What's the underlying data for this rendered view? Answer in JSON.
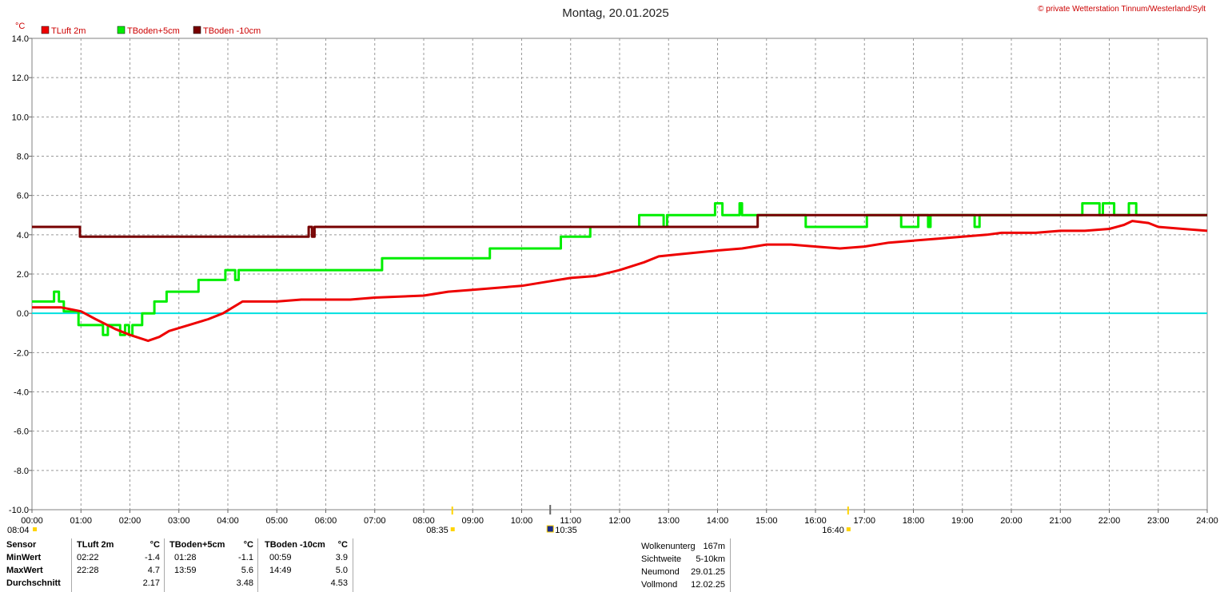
{
  "chart_data": {
    "type": "line",
    "title": "Montag, 20.01.2025",
    "copyright": "© private Wetterstation Tinnum/Westerland/Sylt",
    "ylabel": "°C",
    "ylim": [
      -10,
      14
    ],
    "yticks": [
      "14.0",
      "12.0",
      "10.0",
      "8.0",
      "6.0",
      "4.0",
      "2.0",
      "0.0",
      "-2.0",
      "-4.0",
      "-6.0",
      "-8.0",
      "-10.0"
    ],
    "xlim": [
      0,
      24
    ],
    "xticks": [
      "00:00",
      "01:00",
      "02:00",
      "03:00",
      "04:00",
      "05:00",
      "06:00",
      "07:00",
      "08:00",
      "09:00",
      "10:00",
      "11:00",
      "12:00",
      "13:00",
      "14:00",
      "15:00",
      "16:00",
      "17:00",
      "18:00",
      "19:00",
      "20:00",
      "21:00",
      "22:00",
      "23:00",
      "24:00"
    ],
    "grid": true,
    "legend_position": "top-left",
    "zero_line_color": "#00e0e0",
    "series": [
      {
        "name": "TLuft 2m",
        "color": "#ee0000",
        "points": [
          [
            0,
            0.3
          ],
          [
            0.6,
            0.3
          ],
          [
            1.0,
            0.1
          ],
          [
            1.3,
            -0.3
          ],
          [
            1.7,
            -0.8
          ],
          [
            2.0,
            -1.1
          ],
          [
            2.37,
            -1.4
          ],
          [
            2.6,
            -1.2
          ],
          [
            2.8,
            -0.9
          ],
          [
            3.2,
            -0.6
          ],
          [
            3.6,
            -0.3
          ],
          [
            3.9,
            0.0
          ],
          [
            4.1,
            0.3
          ],
          [
            4.3,
            0.6
          ],
          [
            5.0,
            0.6
          ],
          [
            5.5,
            0.7
          ],
          [
            6.0,
            0.7
          ],
          [
            6.5,
            0.7
          ],
          [
            7.0,
            0.8
          ],
          [
            8.0,
            0.9
          ],
          [
            8.5,
            1.1
          ],
          [
            9.0,
            1.2
          ],
          [
            9.5,
            1.3
          ],
          [
            10.0,
            1.4
          ],
          [
            10.5,
            1.6
          ],
          [
            11.0,
            1.8
          ],
          [
            11.5,
            1.9
          ],
          [
            12.0,
            2.2
          ],
          [
            12.5,
            2.6
          ],
          [
            12.8,
            2.9
          ],
          [
            13.2,
            3.0
          ],
          [
            14.0,
            3.2
          ],
          [
            14.5,
            3.3
          ],
          [
            15.0,
            3.5
          ],
          [
            15.5,
            3.5
          ],
          [
            16.0,
            3.4
          ],
          [
            16.5,
            3.3
          ],
          [
            17.0,
            3.4
          ],
          [
            17.5,
            3.6
          ],
          [
            18.0,
            3.7
          ],
          [
            18.5,
            3.8
          ],
          [
            19.0,
            3.9
          ],
          [
            19.5,
            4.0
          ],
          [
            19.8,
            4.1
          ],
          [
            20.5,
            4.1
          ],
          [
            21.0,
            4.2
          ],
          [
            21.5,
            4.2
          ],
          [
            22.0,
            4.3
          ],
          [
            22.3,
            4.5
          ],
          [
            22.47,
            4.7
          ],
          [
            22.8,
            4.6
          ],
          [
            23.0,
            4.4
          ],
          [
            23.5,
            4.3
          ],
          [
            24.0,
            4.2
          ]
        ]
      },
      {
        "name": "TBoden+5cm",
        "color": "#00ee00",
        "points": [
          [
            0,
            0.6
          ],
          [
            0.45,
            0.6
          ],
          [
            0.45,
            1.1
          ],
          [
            0.55,
            1.1
          ],
          [
            0.55,
            0.6
          ],
          [
            0.65,
            0.6
          ],
          [
            0.65,
            0.1
          ],
          [
            0.95,
            0.1
          ],
          [
            0.95,
            -0.6
          ],
          [
            1.45,
            -0.6
          ],
          [
            1.45,
            -1.1
          ],
          [
            1.55,
            -1.1
          ],
          [
            1.55,
            -0.6
          ],
          [
            1.8,
            -0.6
          ],
          [
            1.8,
            -1.1
          ],
          [
            1.9,
            -1.1
          ],
          [
            1.9,
            -0.6
          ],
          [
            1.98,
            -0.6
          ],
          [
            1.98,
            -1.1
          ],
          [
            2.05,
            -1.1
          ],
          [
            2.05,
            -0.6
          ],
          [
            2.25,
            -0.6
          ],
          [
            2.25,
            0.0
          ],
          [
            2.5,
            0.0
          ],
          [
            2.5,
            0.6
          ],
          [
            2.75,
            0.6
          ],
          [
            2.75,
            1.1
          ],
          [
            3.4,
            1.1
          ],
          [
            3.4,
            1.7
          ],
          [
            3.95,
            1.7
          ],
          [
            3.95,
            2.2
          ],
          [
            4.15,
            2.2
          ],
          [
            4.15,
            1.7
          ],
          [
            4.22,
            1.7
          ],
          [
            4.22,
            2.2
          ],
          [
            7.15,
            2.2
          ],
          [
            7.15,
            2.8
          ],
          [
            9.35,
            2.8
          ],
          [
            9.35,
            3.3
          ],
          [
            10.8,
            3.3
          ],
          [
            10.8,
            3.9
          ],
          [
            11.4,
            3.9
          ],
          [
            11.4,
            4.4
          ],
          [
            12.4,
            4.4
          ],
          [
            12.4,
            5.0
          ],
          [
            12.9,
            5.0
          ],
          [
            12.9,
            4.4
          ],
          [
            12.97,
            4.4
          ],
          [
            12.97,
            5.0
          ],
          [
            13.95,
            5.0
          ],
          [
            13.95,
            5.6
          ],
          [
            14.1,
            5.6
          ],
          [
            14.1,
            5.0
          ],
          [
            14.45,
            5.0
          ],
          [
            14.45,
            5.6
          ],
          [
            14.5,
            5.6
          ],
          [
            14.5,
            5.0
          ],
          [
            15.8,
            5.0
          ],
          [
            15.8,
            4.4
          ],
          [
            17.05,
            4.4
          ],
          [
            17.05,
            5.0
          ],
          [
            17.75,
            5.0
          ],
          [
            17.75,
            4.4
          ],
          [
            18.1,
            4.4
          ],
          [
            18.1,
            5.0
          ],
          [
            18.3,
            5.0
          ],
          [
            18.3,
            4.4
          ],
          [
            18.35,
            4.4
          ],
          [
            18.35,
            5.0
          ],
          [
            19.25,
            5.0
          ],
          [
            19.25,
            4.4
          ],
          [
            19.35,
            4.4
          ],
          [
            19.35,
            5.0
          ],
          [
            21.45,
            5.0
          ],
          [
            21.45,
            5.6
          ],
          [
            21.8,
            5.6
          ],
          [
            21.8,
            5.0
          ],
          [
            21.87,
            5.0
          ],
          [
            21.87,
            5.6
          ],
          [
            22.1,
            5.6
          ],
          [
            22.1,
            5.0
          ],
          [
            22.4,
            5.0
          ],
          [
            22.4,
            5.6
          ],
          [
            22.55,
            5.6
          ],
          [
            22.55,
            5.0
          ],
          [
            24.0,
            5.0
          ]
        ]
      },
      {
        "name": "TBoden -10cm",
        "color": "#770000",
        "points": [
          [
            0,
            4.4
          ],
          [
            0.98,
            4.4
          ],
          [
            0.98,
            3.9
          ],
          [
            5.65,
            3.9
          ],
          [
            5.65,
            4.4
          ],
          [
            5.72,
            4.4
          ],
          [
            5.72,
            3.9
          ],
          [
            5.77,
            3.9
          ],
          [
            5.77,
            4.4
          ],
          [
            14.82,
            4.4
          ],
          [
            14.82,
            5.0
          ],
          [
            24.0,
            5.0
          ]
        ]
      }
    ]
  },
  "sun": {
    "sunrise": "08:35",
    "sunset": "16:40",
    "moonrise": "08:04",
    "moon_time": "10:35"
  },
  "stats": {
    "col_sensor": "Sensor",
    "rows": [
      "MinWert",
      "MaxWert",
      "Durchschnitt"
    ],
    "unit": "°C",
    "sensors": [
      {
        "name": "TLuft 2m",
        "min_time": "02:22",
        "min": "-1.4",
        "max_time": "22:28",
        "max": "4.7",
        "avg": "2.17"
      },
      {
        "name": "TBoden+5cm",
        "min_time": "01:28",
        "min": "-1.1",
        "max_time": "13:59",
        "max": "5.6",
        "avg": "3.48"
      },
      {
        "name": "TBoden -10cm",
        "min_time": "00:59",
        "min": "3.9",
        "max_time": "14:49",
        "max": "5.0",
        "avg": "4.53"
      }
    ]
  },
  "info": [
    {
      "label": "Wolkenunterg",
      "value": "167m"
    },
    {
      "label": "Sichtweite",
      "value": "5-10km"
    },
    {
      "label": "Neumond",
      "value": "29.01.25"
    },
    {
      "label": "Vollmond",
      "value": "12.02.25"
    }
  ]
}
